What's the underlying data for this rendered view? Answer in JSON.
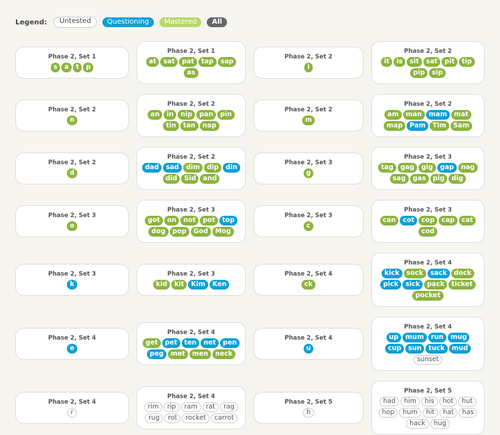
{
  "legend": {
    "label": "Legend:",
    "items": [
      {
        "label": "Untested",
        "status": "untested",
        "bg": "#ffffff",
        "fg": "#444444"
      },
      {
        "label": "Questioning",
        "status": "questioning",
        "bg": "#0ea0d6",
        "fg": "#ffffff"
      },
      {
        "label": "Mastered",
        "status": "mastered",
        "bg": "#b8d86a",
        "fg": "#ffffff"
      },
      {
        "label": "All",
        "status": "all",
        "bg": "#666666",
        "fg": "#ffffff"
      }
    ]
  },
  "colors": {
    "mastered": "#8cb43c",
    "questioning": "#0ea0d6",
    "untested": "#ffffff"
  },
  "cards": [
    {
      "title": "Phase 2, Set 1",
      "words": [
        [
          "s",
          "m"
        ],
        [
          "a",
          "m"
        ],
        [
          "t",
          "m"
        ],
        [
          "p",
          "m"
        ]
      ]
    },
    {
      "title": "Phase 2, Set 1",
      "words": [
        [
          "at",
          "m"
        ],
        [
          "sat",
          "m"
        ],
        [
          "pat",
          "m"
        ],
        [
          "tap",
          "m"
        ],
        [
          "sap",
          "m"
        ],
        [
          "as",
          "m"
        ]
      ]
    },
    {
      "title": "Phase 2, Set 2",
      "words": [
        [
          "i",
          "m"
        ]
      ]
    },
    {
      "title": "Phase 2, Set 2",
      "words": [
        [
          "it",
          "m"
        ],
        [
          "is",
          "m"
        ],
        [
          "sit",
          "m"
        ],
        [
          "sat",
          "m"
        ],
        [
          "pit",
          "m"
        ],
        [
          "tip",
          "m"
        ],
        [
          "pip",
          "m"
        ],
        [
          "sip",
          "m"
        ]
      ]
    },
    {
      "title": "Phase 2, Set 2",
      "words": [
        [
          "n",
          "m"
        ]
      ]
    },
    {
      "title": "Phase 2, Set 2",
      "words": [
        [
          "an",
          "m"
        ],
        [
          "in",
          "m"
        ],
        [
          "nip",
          "m"
        ],
        [
          "pan",
          "m"
        ],
        [
          "pin",
          "m"
        ],
        [
          "tin",
          "m"
        ],
        [
          "tan",
          "m"
        ],
        [
          "nap",
          "m"
        ]
      ]
    },
    {
      "title": "Phase 2, Set 2",
      "words": [
        [
          "m",
          "m"
        ]
      ]
    },
    {
      "title": "Phase 2, Set 2",
      "words": [
        [
          "am",
          "m"
        ],
        [
          "man",
          "m"
        ],
        [
          "mam",
          "q"
        ],
        [
          "mat",
          "m"
        ],
        [
          "map",
          "m"
        ],
        [
          "Pam",
          "q"
        ],
        [
          "Tim",
          "m"
        ],
        [
          "Sam",
          "m"
        ]
      ]
    },
    {
      "title": "Phase 2, Set 2",
      "words": [
        [
          "d",
          "m"
        ]
      ]
    },
    {
      "title": "Phase 2, Set 2",
      "words": [
        [
          "dad",
          "q"
        ],
        [
          "sad",
          "q"
        ],
        [
          "dim",
          "m"
        ],
        [
          "dip",
          "m"
        ],
        [
          "din",
          "q"
        ],
        [
          "did",
          "m"
        ],
        [
          "Sid",
          "m"
        ],
        [
          "and",
          "m"
        ]
      ]
    },
    {
      "title": "Phase 2, Set 3",
      "words": [
        [
          "g",
          "m"
        ]
      ]
    },
    {
      "title": "Phase 2, Set 3",
      "words": [
        [
          "tag",
          "m"
        ],
        [
          "gag",
          "m"
        ],
        [
          "gig",
          "m"
        ],
        [
          "gap",
          "q"
        ],
        [
          "nag",
          "m"
        ],
        [
          "sag",
          "m"
        ],
        [
          "gas",
          "m"
        ],
        [
          "pig",
          "m"
        ],
        [
          "dig",
          "m"
        ]
      ]
    },
    {
      "title": "Phase 2, Set 3",
      "words": [
        [
          "o",
          "m"
        ]
      ]
    },
    {
      "title": "Phase 2, Set 3",
      "words": [
        [
          "got",
          "m"
        ],
        [
          "on",
          "m"
        ],
        [
          "not",
          "m"
        ],
        [
          "pot",
          "m"
        ],
        [
          "top",
          "q"
        ],
        [
          "dog",
          "m"
        ],
        [
          "pop",
          "m"
        ],
        [
          "God",
          "m"
        ],
        [
          "Mog",
          "m"
        ]
      ]
    },
    {
      "title": "Phase 2, Set 3",
      "words": [
        [
          "c",
          "m"
        ]
      ]
    },
    {
      "title": "Phase 2, Set 3",
      "words": [
        [
          "can",
          "m"
        ],
        [
          "cot",
          "q"
        ],
        [
          "cop",
          "m"
        ],
        [
          "cap",
          "m"
        ],
        [
          "cat",
          "m"
        ],
        [
          "cod",
          "m"
        ]
      ]
    },
    {
      "title": "Phase 2, Set 3",
      "words": [
        [
          "k",
          "q"
        ]
      ]
    },
    {
      "title": "Phase 2, Set 3",
      "words": [
        [
          "kid",
          "m"
        ],
        [
          "kit",
          "m"
        ],
        [
          "Kim",
          "q"
        ],
        [
          "Ken",
          "q"
        ]
      ]
    },
    {
      "title": "Phase 2, Set 4",
      "words": [
        [
          "ck",
          "m"
        ]
      ]
    },
    {
      "title": "Phase 2, Set 4",
      "words": [
        [
          "kick",
          "q"
        ],
        [
          "sock",
          "m"
        ],
        [
          "sack",
          "q"
        ],
        [
          "dock",
          "m"
        ],
        [
          "pick",
          "q"
        ],
        [
          "sick",
          "q"
        ],
        [
          "pack",
          "m"
        ],
        [
          "ticket",
          "m"
        ],
        [
          "pocket",
          "m"
        ]
      ]
    },
    {
      "title": "Phase 2, Set 4",
      "words": [
        [
          "e",
          "q"
        ]
      ]
    },
    {
      "title": "Phase 2, Set 4",
      "words": [
        [
          "get",
          "m"
        ],
        [
          "pet",
          "q"
        ],
        [
          "ten",
          "q"
        ],
        [
          "net",
          "q"
        ],
        [
          "pen",
          "q"
        ],
        [
          "peg",
          "q"
        ],
        [
          "met",
          "m"
        ],
        [
          "men",
          "m"
        ],
        [
          "neck",
          "m"
        ]
      ]
    },
    {
      "title": "Phase 2, Set 4",
      "words": [
        [
          "u",
          "q"
        ]
      ]
    },
    {
      "title": "Phase 2, Set 4",
      "words": [
        [
          "up",
          "q"
        ],
        [
          "mum",
          "q"
        ],
        [
          "run",
          "q"
        ],
        [
          "mug",
          "q"
        ],
        [
          "cup",
          "q"
        ],
        [
          "sun",
          "q"
        ],
        [
          "tuck",
          "q"
        ],
        [
          "mud",
          "q"
        ],
        [
          "sunset",
          "u"
        ]
      ]
    },
    {
      "title": "Phase 2, Set 4",
      "words": [
        [
          "r",
          "u"
        ]
      ]
    },
    {
      "title": "Phase 2, Set 4",
      "words": [
        [
          "rim",
          "u"
        ],
        [
          "rip",
          "u"
        ],
        [
          "ram",
          "u"
        ],
        [
          "rat",
          "u"
        ],
        [
          "rag",
          "u"
        ],
        [
          "rug",
          "u"
        ],
        [
          "rot",
          "u"
        ],
        [
          "rocket",
          "u"
        ],
        [
          "carrot",
          "u"
        ]
      ]
    },
    {
      "title": "Phase 2, Set 5",
      "words": [
        [
          "h",
          "u"
        ]
      ]
    },
    {
      "title": "Phase 2, Set 5",
      "words": [
        [
          "had",
          "u"
        ],
        [
          "him",
          "u"
        ],
        [
          "his",
          "u"
        ],
        [
          "hot",
          "u"
        ],
        [
          "hut",
          "u"
        ],
        [
          "hop",
          "u"
        ],
        [
          "hum",
          "u"
        ],
        [
          "hit",
          "u"
        ],
        [
          "hat",
          "u"
        ],
        [
          "has",
          "u"
        ],
        [
          "hack",
          "u"
        ],
        [
          "hug",
          "u"
        ]
      ]
    }
  ]
}
